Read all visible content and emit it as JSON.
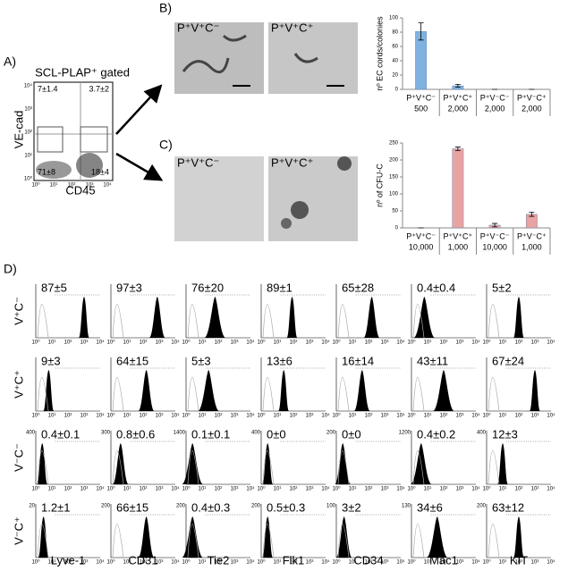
{
  "panel_labels": [
    "A)",
    "B)",
    "C)",
    "D)"
  ],
  "panel_a": {
    "title": "SCL-PLAP⁺ gated",
    "x_label": "CD45",
    "y_label": "VE-cad",
    "axis_ticks": [
      "10⁰",
      "10¹",
      "10²",
      "10³",
      "10⁴"
    ],
    "quadrants": [
      "7±1.4",
      "3.7±2",
      "71±8",
      "18±4"
    ]
  },
  "panel_b": {
    "photos": [
      "P⁺V⁺C⁻",
      "P⁺V⁺C⁺"
    ]
  },
  "panel_c": {
    "photos": [
      "P⁺V⁺C⁻",
      "P⁺V⁺C⁺"
    ]
  },
  "chart_data": [
    {
      "type": "bar",
      "y_label": "nº EC cords/colonies",
      "categories": [
        "P⁺V⁺C⁻",
        "P⁺V⁺C⁺",
        "P⁺V⁻C⁻",
        "P⁺V⁻C⁺"
      ],
      "cell_counts": [
        "500",
        "2,000",
        "2,000",
        "2,000"
      ],
      "values": [
        81,
        5,
        0,
        0
      ],
      "errors": [
        12,
        2,
        0,
        0
      ],
      "color": "#7fb2e0",
      "ylim": [
        0,
        100
      ],
      "yticks": [
        0,
        20,
        40,
        60,
        80,
        100
      ]
    },
    {
      "type": "bar",
      "y_label": "nº of CFU-C",
      "categories": [
        "P⁺V⁺C⁻",
        "P⁺V⁺C⁺",
        "P⁺V⁻C⁻",
        "P⁺V⁻C⁺"
      ],
      "cell_counts": [
        "10,000",
        "1,000",
        "10,000",
        "1,000"
      ],
      "values": [
        0,
        233,
        8,
        40
      ],
      "errors": [
        0,
        5,
        5,
        6
      ],
      "color": "#e8a3a3",
      "ylim": [
        0,
        250
      ],
      "yticks": [
        0,
        50,
        100,
        150,
        200,
        250
      ]
    }
  ],
  "panel_d": {
    "rows": [
      "V⁺C⁻",
      "V⁺C⁺",
      "V⁻C⁻",
      "V⁻C⁺"
    ],
    "columns": [
      "Lyve-1",
      "CD31",
      "Tie2",
      "Flk1",
      "CD34",
      "Mac1",
      "KIT"
    ],
    "x_ticks": [
      "10⁰",
      "10¹",
      "10²",
      "10³",
      "10⁴"
    ],
    "percentages": [
      [
        "87±5",
        "97±3",
        "76±20",
        "89±1",
        "65±28",
        "0.4±0.4",
        "5±2"
      ],
      [
        "9±3",
        "64±15",
        "5±3",
        "13±6",
        "16±14",
        "43±11",
        "67±24"
      ],
      [
        "0.4±0.1",
        "0.8±0.6",
        "0.1±0.1",
        "0±0",
        "0±0",
        "0.4±0.2",
        "12±3"
      ],
      [
        "1.2±1",
        "66±15",
        "0.4±0.3",
        "0.5±0.3",
        "3±2",
        "34±6",
        "63±12"
      ]
    ],
    "y_max_labels": [
      null,
      null,
      [
        "400",
        "300",
        "1400",
        "400",
        "200",
        "1200",
        "400"
      ],
      [
        "20",
        "200",
        "200",
        "200",
        "100",
        "130",
        "200"
      ]
    ]
  }
}
